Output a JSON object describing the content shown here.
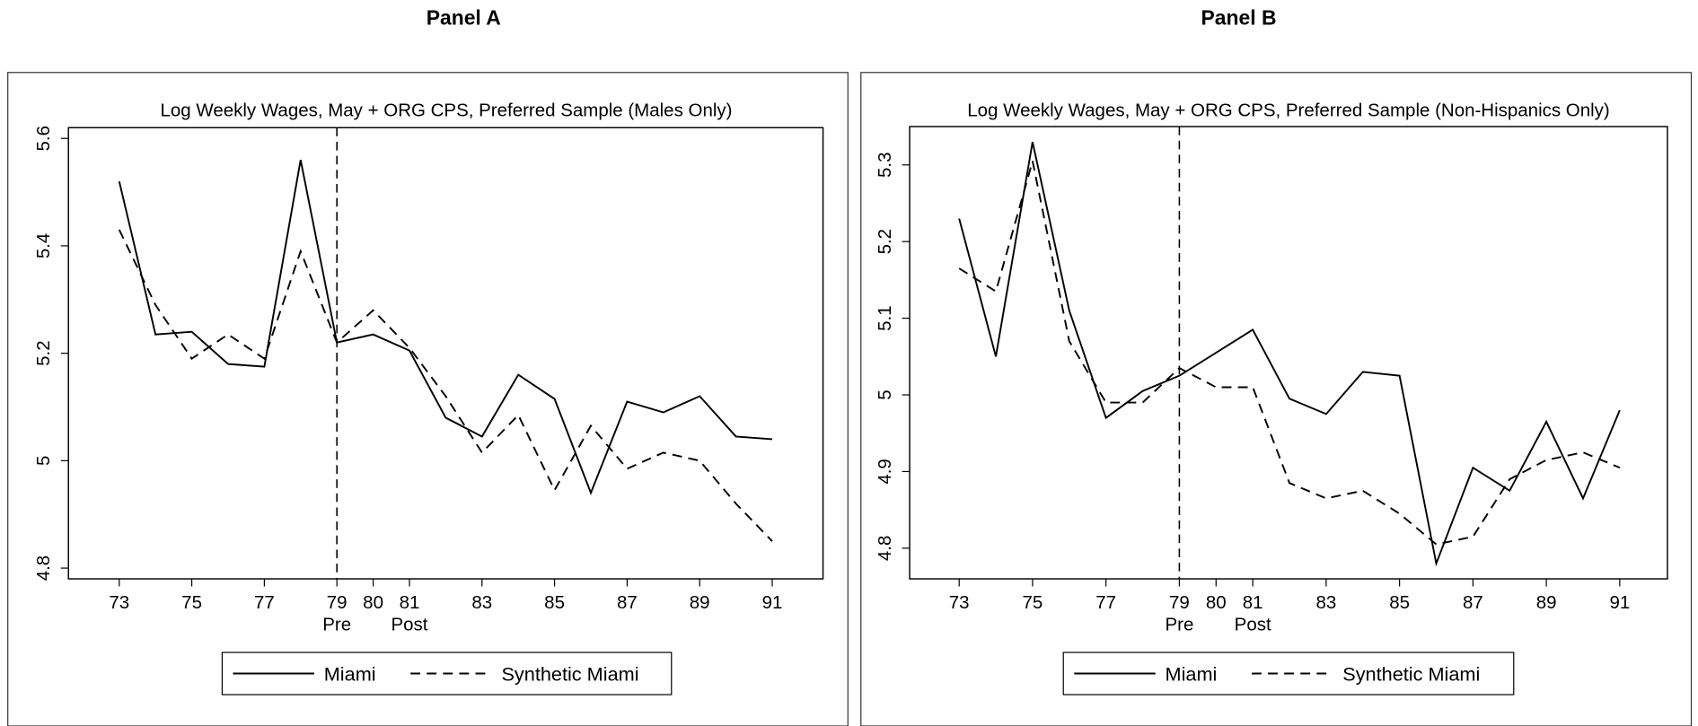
{
  "chart_data": [
    {
      "type": "line",
      "panel": "Panel A",
      "title": "Log Weekly Wages, May + ORG CPS, Preferred Sample (Males Only)",
      "x": [
        73,
        74,
        75,
        76,
        77,
        78,
        79,
        80,
        81,
        82,
        83,
        84,
        85,
        86,
        87,
        88,
        89,
        90,
        91
      ],
      "series": [
        {
          "name": "Miami",
          "color": "#000000",
          "style": "solid",
          "values": [
            5.52,
            5.235,
            5.24,
            5.18,
            5.175,
            5.56,
            5.22,
            5.235,
            5.205,
            5.08,
            5.045,
            5.16,
            5.115,
            4.94,
            5.11,
            5.09,
            5.12,
            5.045,
            5.04
          ]
        },
        {
          "name": "Synthetic Miami",
          "color": "#000000",
          "style": "dashed",
          "values": [
            5.43,
            5.29,
            5.19,
            5.235,
            5.19,
            5.39,
            5.22,
            5.28,
            5.21,
            5.12,
            5.015,
            5.085,
            4.945,
            5.065,
            4.985,
            5.015,
            5.0,
            4.92,
            4.85
          ]
        }
      ],
      "xlim": [
        71.6,
        92.4
      ],
      "xticks": [
        73,
        75,
        77,
        79,
        80,
        81,
        83,
        85,
        87,
        89,
        91
      ],
      "ylim": [
        4.78,
        5.62
      ],
      "yticks": [
        4.8,
        5,
        5.2,
        5.4,
        5.6
      ],
      "vline": 79,
      "x_annotations": [
        {
          "x": 79,
          "text": "Pre"
        },
        {
          "x": 81,
          "text": "Post"
        }
      ],
      "legend": "bottom"
    },
    {
      "type": "line",
      "panel": "Panel B",
      "title": "Log Weekly Wages, May + ORG CPS, Preferred Sample (Non-Hispanics Only)",
      "x": [
        73,
        74,
        75,
        76,
        77,
        78,
        79,
        80,
        81,
        82,
        83,
        84,
        85,
        86,
        87,
        88,
        89,
        90,
        91
      ],
      "series": [
        {
          "name": "Miami",
          "color": "#000000",
          "style": "solid",
          "values": [
            5.23,
            5.05,
            5.33,
            5.11,
            4.97,
            5.005,
            5.025,
            5.055,
            5.085,
            4.995,
            4.975,
            5.03,
            5.025,
            4.78,
            4.905,
            4.875,
            4.965,
            4.865,
            4.98
          ]
        },
        {
          "name": "Synthetic Miami",
          "color": "#000000",
          "style": "dashed",
          "values": [
            5.165,
            5.135,
            5.305,
            5.07,
            4.99,
            4.99,
            5.035,
            5.01,
            5.01,
            4.885,
            4.865,
            4.875,
            4.845,
            4.805,
            4.815,
            4.89,
            4.915,
            4.925,
            4.905
          ]
        }
      ],
      "xlim": [
        71.65,
        92.3
      ],
      "xticks": [
        73,
        75,
        77,
        79,
        80,
        81,
        83,
        85,
        87,
        89,
        91
      ],
      "ylim": [
        4.76,
        5.35
      ],
      "yticks": [
        4.8,
        4.9,
        5,
        5.1,
        5.2,
        5.3
      ],
      "vline": 79,
      "x_annotations": [
        {
          "x": 79,
          "text": "Pre"
        },
        {
          "x": 81,
          "text": "Post"
        }
      ],
      "legend": "bottom"
    }
  ]
}
